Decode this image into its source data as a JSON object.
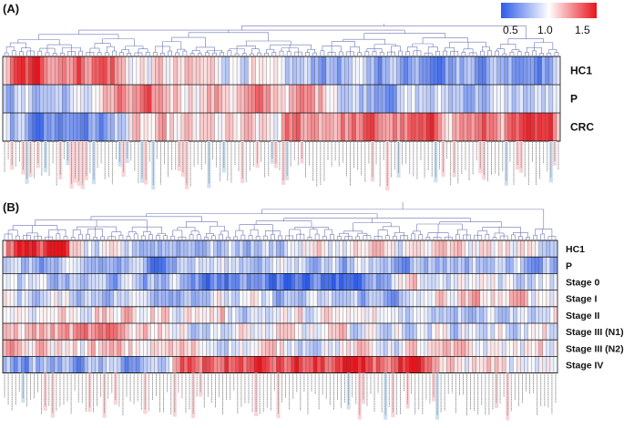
{
  "chart_data": [
    {
      "panel": "(A)",
      "type": "heatmap",
      "rows": [
        "HC1",
        "P",
        "CRC"
      ],
      "n_columns": 150,
      "colorbar": {
        "ticks": [
          "0.5",
          "1.0",
          "1.5"
        ],
        "min": 0.5,
        "mid": 1.0,
        "max": 1.5
      }
    },
    {
      "panel": "(B)",
      "type": "heatmap",
      "rows": [
        "HC1",
        "P",
        "Stage 0",
        "Stage I",
        "Stage II",
        "Stage III (N1)",
        "Stage III (N2)",
        "Stage IV"
      ],
      "n_columns": 150
    }
  ],
  "colors": {
    "low": "#2d5be8",
    "mid": "#ffffff",
    "high": "#e8141c",
    "dendrogram": "#6b74b4"
  }
}
